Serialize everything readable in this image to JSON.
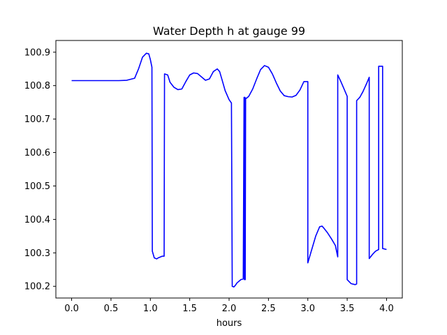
{
  "chart_data": {
    "type": "line",
    "title": "Water Depth h at gauge 99",
    "xlabel": "hours",
    "ylabel": "",
    "xlim": [
      -0.2,
      4.2
    ],
    "ylim": [
      100.165,
      100.935
    ],
    "xticks": [
      0.0,
      0.5,
      1.0,
      1.5,
      2.0,
      2.5,
      3.0,
      3.5,
      4.0
    ],
    "xtick_labels": [
      "0.0",
      "0.5",
      "1.0",
      "1.5",
      "2.0",
      "2.5",
      "3.0",
      "3.5",
      "4.0"
    ],
    "yticks": [
      100.2,
      100.3,
      100.4,
      100.5,
      100.6,
      100.7,
      100.8,
      100.9
    ],
    "ytick_labels": [
      "100.2",
      "100.3",
      "100.4",
      "100.5",
      "100.6",
      "100.7",
      "100.8",
      "100.9"
    ],
    "grid": false,
    "line_color": "#0000ff",
    "series": [
      {
        "name": "",
        "x": [
          0.0,
          0.3,
          0.6,
          0.7,
          0.8,
          0.85,
          0.9,
          0.95,
          0.98,
          1.0,
          1.02,
          1.025,
          1.05,
          1.08,
          1.1,
          1.15,
          1.175,
          1.18,
          1.22,
          1.25,
          1.3,
          1.35,
          1.4,
          1.45,
          1.5,
          1.55,
          1.6,
          1.65,
          1.7,
          1.75,
          1.8,
          1.85,
          1.88,
          1.91,
          1.95,
          2.0,
          2.03,
          2.04,
          2.06,
          2.08,
          2.1,
          2.15,
          2.18,
          2.19,
          2.195,
          2.2,
          2.205,
          2.21,
          2.22,
          2.25,
          2.3,
          2.35,
          2.4,
          2.45,
          2.5,
          2.55,
          2.6,
          2.65,
          2.7,
          2.75,
          2.8,
          2.85,
          2.9,
          2.95,
          3.0,
          3.0,
          3.05,
          3.1,
          3.15,
          3.18,
          3.2,
          3.25,
          3.3,
          3.35,
          3.38,
          3.38,
          3.42,
          3.46,
          3.5,
          3.5,
          3.55,
          3.6,
          3.62,
          3.62,
          3.66,
          3.7,
          3.75,
          3.78,
          3.78,
          3.82,
          3.86,
          3.9,
          3.9,
          3.95,
          3.95,
          4.0
        ],
        "y": [
          100.815,
          100.815,
          100.815,
          100.816,
          100.822,
          100.85,
          100.885,
          100.897,
          100.895,
          100.878,
          100.855,
          100.305,
          100.285,
          100.282,
          100.285,
          100.29,
          100.29,
          100.835,
          100.832,
          100.81,
          100.795,
          100.788,
          100.79,
          100.812,
          100.832,
          100.838,
          100.836,
          100.826,
          100.816,
          100.82,
          100.842,
          100.85,
          100.842,
          100.818,
          100.785,
          100.758,
          100.748,
          100.2,
          100.198,
          100.203,
          100.21,
          100.22,
          100.222,
          100.765,
          100.22,
          100.765,
          100.22,
          100.763,
          100.762,
          100.768,
          100.79,
          100.82,
          100.848,
          100.86,
          100.855,
          100.835,
          100.808,
          100.784,
          100.77,
          100.767,
          100.766,
          100.771,
          100.787,
          100.812,
          100.812,
          100.27,
          100.31,
          100.35,
          100.378,
          100.38,
          100.375,
          100.36,
          100.342,
          100.322,
          100.288,
          100.832,
          100.812,
          100.79,
          100.768,
          100.22,
          100.208,
          100.205,
          100.207,
          100.755,
          100.765,
          100.782,
          100.808,
          100.825,
          100.283,
          100.295,
          100.305,
          100.31,
          100.858,
          100.858,
          100.313,
          100.31
        ]
      }
    ]
  }
}
